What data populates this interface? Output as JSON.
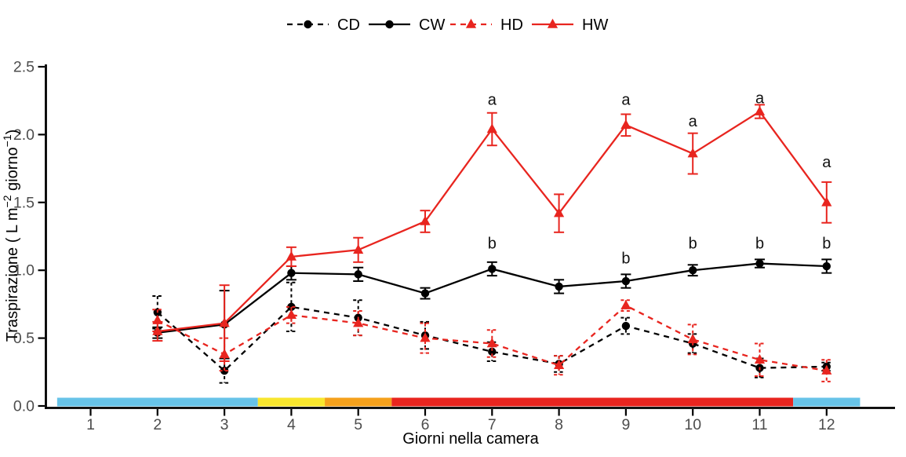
{
  "chart_data": {
    "type": "line",
    "title": "",
    "xlabel": "Giorni nella camera",
    "ylabel": "Traspirazione ( L m⁻² giorno⁻¹)",
    "ylabel_parts": [
      {
        "t": "Traspirazione ( L m",
        "sup": false
      },
      {
        "t": "−2",
        "sup": true
      },
      {
        "t": " giorno",
        "sup": false
      },
      {
        "t": "−1",
        "sup": true
      },
      {
        "t": ")",
        "sup": false
      }
    ],
    "xlim": [
      0.4,
      12.6
    ],
    "ylim": [
      0.0,
      2.5
    ],
    "xticks": [
      1,
      2,
      3,
      4,
      5,
      6,
      7,
      8,
      9,
      10,
      11,
      12
    ],
    "yticks": [
      "0.0",
      "0.5",
      "1.0",
      "1.5",
      "2.0",
      "2.5"
    ],
    "grid": false,
    "legend_position": "top-center",
    "x": [
      2,
      3,
      4,
      5,
      6,
      7,
      8,
      9,
      10,
      11,
      12
    ],
    "series": [
      {
        "name": "CD",
        "color": "#000000",
        "linestyle": "dashed",
        "marker": "circle",
        "values": [
          0.69,
          0.26,
          0.73,
          0.65,
          0.52,
          0.4,
          0.31,
          0.59,
          0.46,
          0.28,
          0.29
        ],
        "errors": [
          0.12,
          0.09,
          0.18,
          0.13,
          0.1,
          0.07,
          0.06,
          0.06,
          0.07,
          0.07,
          0.03
        ]
      },
      {
        "name": "CW",
        "color": "#000000",
        "linestyle": "solid",
        "marker": "circle",
        "values": [
          0.54,
          0.6,
          0.98,
          0.97,
          0.83,
          1.01,
          0.88,
          0.92,
          1.0,
          1.05,
          1.03
        ],
        "errors": [
          0.04,
          0.25,
          0.05,
          0.05,
          0.04,
          0.05,
          0.05,
          0.05,
          0.04,
          0.03,
          0.05
        ]
      },
      {
        "name": "HD",
        "color": "#e8251f",
        "linestyle": "dashed",
        "marker": "triangle",
        "values": [
          0.63,
          0.38,
          0.67,
          0.61,
          0.5,
          0.46,
          0.3,
          0.74,
          0.49,
          0.34,
          0.26
        ],
        "errors": [
          0.08,
          0.12,
          0.06,
          0.09,
          0.11,
          0.1,
          0.07,
          0.04,
          0.11,
          0.12,
          0.08
        ]
      },
      {
        "name": "HW",
        "color": "#e8251f",
        "linestyle": "solid",
        "marker": "triangle",
        "values": [
          0.55,
          0.61,
          1.1,
          1.15,
          1.36,
          2.04,
          1.42,
          2.07,
          1.86,
          2.17,
          1.5
        ],
        "errors": [
          0.07,
          0.28,
          0.07,
          0.09,
          0.08,
          0.12,
          0.14,
          0.08,
          0.15,
          0.05,
          0.15
        ]
      }
    ],
    "annotations": [
      {
        "text": "a",
        "x": 7,
        "y": 2.22
      },
      {
        "text": "a",
        "x": 9,
        "y": 2.22
      },
      {
        "text": "a",
        "x": 10,
        "y": 2.06
      },
      {
        "text": "a",
        "x": 11,
        "y": 2.23
      },
      {
        "text": "a",
        "x": 12,
        "y": 1.76
      },
      {
        "text": "b",
        "x": 7,
        "y": 1.16
      },
      {
        "text": "b",
        "x": 9,
        "y": 1.05
      },
      {
        "text": "b",
        "x": 10,
        "y": 1.16
      },
      {
        "text": "b",
        "x": 11,
        "y": 1.16
      },
      {
        "text": "b",
        "x": 12,
        "y": 1.16
      }
    ],
    "phase_bands": [
      {
        "from": 0.5,
        "to": 3.5,
        "color": "#67c3e8",
        "name": "blue-phase-start"
      },
      {
        "from": 3.5,
        "to": 4.5,
        "color": "#f8e62e",
        "name": "yellow-phase"
      },
      {
        "from": 4.5,
        "to": 5.5,
        "color": "#f5a11c",
        "name": "orange-phase"
      },
      {
        "from": 5.5,
        "to": 11.5,
        "color": "#e8251f",
        "name": "red-phase"
      },
      {
        "from": 11.5,
        "to": 12.5,
        "color": "#67c3e8",
        "name": "blue-phase-end"
      }
    ],
    "colors": {
      "axis": "#000000",
      "tick_label": "#4d4d4d",
      "annotation": "#111111",
      "background": "#ffffff",
      "red_series": "#e8251f",
      "black_series": "#000000"
    }
  }
}
